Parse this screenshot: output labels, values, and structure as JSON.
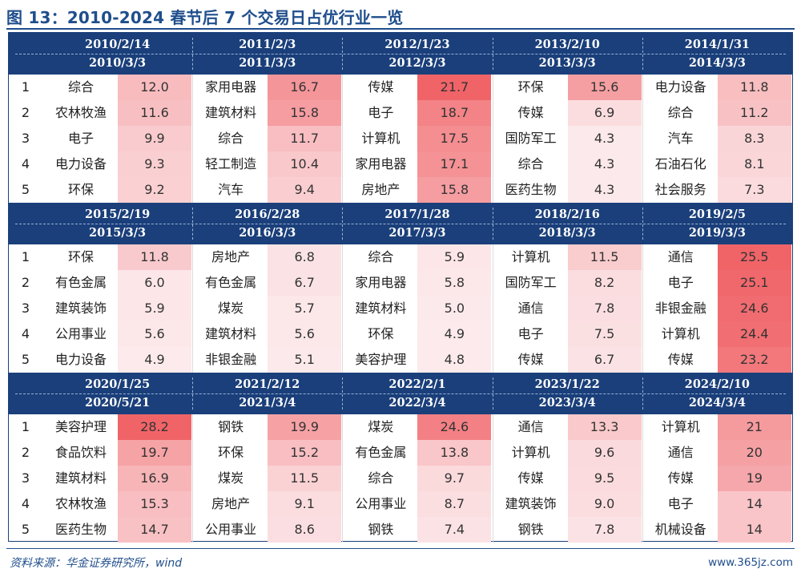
{
  "title": "图 13：2010-2024 春节后 7 个交易日占优行业一览",
  "source": "资料来源：华金证券研究所，wind",
  "watermark": "www.365jz.com",
  "colors": {
    "header_bg": "#1a3f7a",
    "title": "#1f4e8c"
  },
  "ranks": [
    "1",
    "2",
    "3",
    "4",
    "5"
  ],
  "blocks": [
    {
      "periods": [
        {
          "start": "2010/2/14",
          "end": "2010/3/3",
          "rows": [
            [
              "综合",
              "12.0"
            ],
            [
              "农林牧渔",
              "11.6"
            ],
            [
              "电子",
              "9.9"
            ],
            [
              "电力设备",
              "9.3"
            ],
            [
              "环保",
              "9.2"
            ]
          ]
        },
        {
          "start": "2011/2/3",
          "end": "2011/3/3",
          "rows": [
            [
              "家用电器",
              "16.7"
            ],
            [
              "建筑材料",
              "15.8"
            ],
            [
              "综合",
              "11.7"
            ],
            [
              "轻工制造",
              "10.4"
            ],
            [
              "汽车",
              "9.4"
            ]
          ]
        },
        {
          "start": "2012/1/23",
          "end": "2012/3/3",
          "rows": [
            [
              "传媒",
              "21.7"
            ],
            [
              "电子",
              "18.7"
            ],
            [
              "计算机",
              "17.5"
            ],
            [
              "家用电器",
              "17.1"
            ],
            [
              "房地产",
              "15.8"
            ]
          ]
        },
        {
          "start": "2013/2/10",
          "end": "2013/3/3",
          "rows": [
            [
              "环保",
              "15.6"
            ],
            [
              "传媒",
              "6.9"
            ],
            [
              "国防军工",
              "4.3"
            ],
            [
              "综合",
              "4.3"
            ],
            [
              "医药生物",
              "4.3"
            ]
          ]
        },
        {
          "start": "2014/1/31",
          "end": "2014/3/3",
          "rows": [
            [
              "电力设备",
              "11.8"
            ],
            [
              "综合",
              "11.2"
            ],
            [
              "汽车",
              "8.3"
            ],
            [
              "石油石化",
              "8.1"
            ],
            [
              "社会服务",
              "7.3"
            ]
          ]
        }
      ]
    },
    {
      "periods": [
        {
          "start": "2015/2/19",
          "end": "2015/3/3",
          "rows": [
            [
              "环保",
              "11.8"
            ],
            [
              "有色金属",
              "6.0"
            ],
            [
              "建筑装饰",
              "5.9"
            ],
            [
              "公用事业",
              "5.6"
            ],
            [
              "电力设备",
              "4.9"
            ]
          ]
        },
        {
          "start": "2016/2/28",
          "end": "2016/3/3",
          "rows": [
            [
              "房地产",
              "6.8"
            ],
            [
              "有色金属",
              "6.7"
            ],
            [
              "煤炭",
              "5.7"
            ],
            [
              "建筑材料",
              "5.6"
            ],
            [
              "非银金融",
              "5.1"
            ]
          ]
        },
        {
          "start": "2017/1/28",
          "end": "2017/3/3",
          "rows": [
            [
              "综合",
              "5.9"
            ],
            [
              "家用电器",
              "5.8"
            ],
            [
              "建筑材料",
              "5.0"
            ],
            [
              "环保",
              "4.9"
            ],
            [
              "美容护理",
              "4.8"
            ]
          ]
        },
        {
          "start": "2018/2/16",
          "end": "2018/3/3",
          "rows": [
            [
              "计算机",
              "11.5"
            ],
            [
              "国防军工",
              "8.2"
            ],
            [
              "通信",
              "7.8"
            ],
            [
              "电子",
              "7.5"
            ],
            [
              "传媒",
              "6.7"
            ]
          ]
        },
        {
          "start": "2019/2/5",
          "end": "2019/3/3",
          "rows": [
            [
              "通信",
              "25.5"
            ],
            [
              "电子",
              "25.1"
            ],
            [
              "非银金融",
              "24.6"
            ],
            [
              "计算机",
              "24.4"
            ],
            [
              "传媒",
              "23.2"
            ]
          ]
        }
      ]
    },
    {
      "periods": [
        {
          "start": "2020/1/25",
          "end": "2020/5/21",
          "rows": [
            [
              "美容护理",
              "28.2"
            ],
            [
              "食品饮料",
              "19.7"
            ],
            [
              "建筑材料",
              "16.9"
            ],
            [
              "农林牧渔",
              "15.3"
            ],
            [
              "医药生物",
              "14.7"
            ]
          ]
        },
        {
          "start": "2021/2/12",
          "end": "2021/3/4",
          "rows": [
            [
              "钢铁",
              "19.9"
            ],
            [
              "环保",
              "15.2"
            ],
            [
              "煤炭",
              "11.5"
            ],
            [
              "房地产",
              "9.1"
            ],
            [
              "公用事业",
              "8.6"
            ]
          ]
        },
        {
          "start": "2022/2/1",
          "end": "2022/3/4",
          "rows": [
            [
              "煤炭",
              "24.6"
            ],
            [
              "有色金属",
              "13.8"
            ],
            [
              "综合",
              "9.7"
            ],
            [
              "公用事业",
              "8.7"
            ],
            [
              "钢铁",
              "7.4"
            ]
          ]
        },
        {
          "start": "2023/1/22",
          "end": "2023/3/4",
          "rows": [
            [
              "通信",
              "13.3"
            ],
            [
              "计算机",
              "9.6"
            ],
            [
              "传媒",
              "9.5"
            ],
            [
              "建筑装饰",
              "9.0"
            ],
            [
              "钢铁",
              "7.8"
            ]
          ]
        },
        {
          "start": "2024/2/10",
          "end": "2024/3/4",
          "rows": [
            [
              "计算机",
              "21"
            ],
            [
              "通信",
              "20"
            ],
            [
              "传媒",
              "19"
            ],
            [
              "电子",
              "14"
            ],
            [
              "机械设备",
              "14"
            ]
          ]
        }
      ]
    }
  ]
}
